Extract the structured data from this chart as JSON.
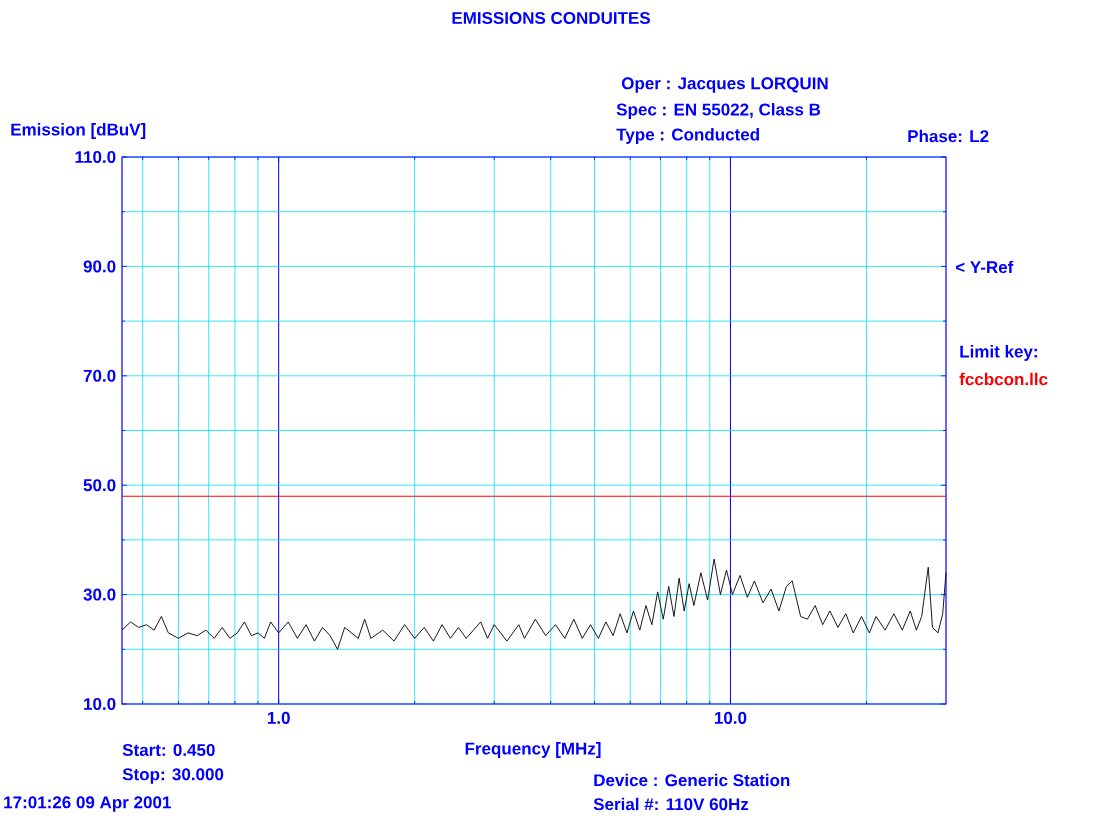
{
  "chart_data": {
    "type": "line",
    "title": "EMISSIONS CONDUITES",
    "xlabel": "Frequency [MHz]",
    "ylabel": "Emission [dBuV]",
    "log": "x",
    "grid": true,
    "xlim": [
      0.45,
      30
    ],
    "xticks": [
      {
        "value": 1,
        "label": "1.0"
      },
      {
        "value": 10,
        "label": "10.0"
      }
    ],
    "ylim": [
      10,
      110
    ],
    "yticks": [
      {
        "value": 10,
        "label": "10.0"
      },
      {
        "value": 30,
        "label": "30.0"
      },
      {
        "value": 50,
        "label": "50.0"
      },
      {
        "value": 70,
        "label": "70.0"
      },
      {
        "value": 90,
        "label": "90.0"
      },
      {
        "value": 110,
        "label": "110.0"
      }
    ],
    "ref_lines": [
      {
        "axis": "y",
        "value": 48,
        "color": "#ff0000"
      }
    ],
    "annotations": [
      "Oper : Jacques LORQUIN",
      "Spec : EN 55022, Class B",
      "Type : Conducted",
      "Phase: L2",
      "< Y-Ref",
      "Limit key:",
      "fccbcon.llc",
      "Start: 0.450",
      "Stop: 30.000",
      "17:01:26 09 Apr 2001",
      "Device : Generic Station",
      "Serial #: 110V 60Hz"
    ],
    "series": [
      {
        "color": "#000000",
        "x": [
          0.45,
          0.47,
          0.49,
          0.51,
          0.53,
          0.55,
          0.57,
          0.6,
          0.63,
          0.66,
          0.69,
          0.72,
          0.75,
          0.78,
          0.81,
          0.84,
          0.87,
          0.9,
          0.93,
          0.96,
          1.0,
          1.05,
          1.1,
          1.15,
          1.2,
          1.25,
          1.3,
          1.35,
          1.4,
          1.5,
          1.55,
          1.6,
          1.7,
          1.8,
          1.9,
          2.0,
          2.1,
          2.2,
          2.3,
          2.4,
          2.5,
          2.6,
          2.8,
          2.9,
          3.0,
          3.2,
          3.4,
          3.5,
          3.7,
          3.9,
          4.1,
          4.3,
          4.5,
          4.7,
          4.9,
          5.1,
          5.3,
          5.5,
          5.7,
          5.9,
          6.1,
          6.3,
          6.5,
          6.7,
          6.9,
          7.1,
          7.3,
          7.5,
          7.7,
          7.9,
          8.1,
          8.3,
          8.6,
          8.9,
          9.2,
          9.5,
          9.8,
          10.1,
          10.5,
          10.9,
          11.3,
          11.8,
          12.3,
          12.8,
          13.3,
          13.7,
          14.3,
          14.8,
          15.4,
          16.0,
          16.6,
          17.3,
          18.0,
          18.7,
          19.5,
          20.3,
          21,
          22,
          23,
          24,
          25,
          25.8,
          26.5,
          27.4,
          28,
          28.8,
          29.5,
          30
        ],
        "values": [
          23.5,
          25,
          24,
          24.5,
          23.5,
          26,
          23,
          22,
          23,
          22.5,
          23.5,
          22,
          24,
          22,
          23,
          25,
          22.5,
          23,
          22,
          25,
          23,
          25,
          22,
          24.5,
          21.5,
          24,
          22.5,
          20,
          24,
          22,
          25.5,
          22,
          23.5,
          21.5,
          24.5,
          22,
          24,
          21.5,
          24.5,
          22,
          24,
          22,
          25,
          22,
          24.5,
          21.5,
          24.5,
          22,
          25.5,
          22.5,
          24.5,
          22,
          25.5,
          22,
          24.5,
          22,
          25,
          22.5,
          26.5,
          23,
          27,
          23.5,
          28,
          24.5,
          30.5,
          25.5,
          31.5,
          26,
          33,
          27,
          32,
          28,
          34,
          29,
          36.5,
          30,
          34.5,
          30,
          33.5,
          29.5,
          32.5,
          28.5,
          31,
          27,
          31.5,
          32.5,
          26,
          25.5,
          28,
          24.5,
          27,
          24,
          26.5,
          23,
          26,
          23,
          26,
          23.5,
          26.5,
          23.5,
          27,
          23.5,
          26,
          35,
          24,
          23,
          26.5,
          34
        ]
      }
    ]
  }
}
